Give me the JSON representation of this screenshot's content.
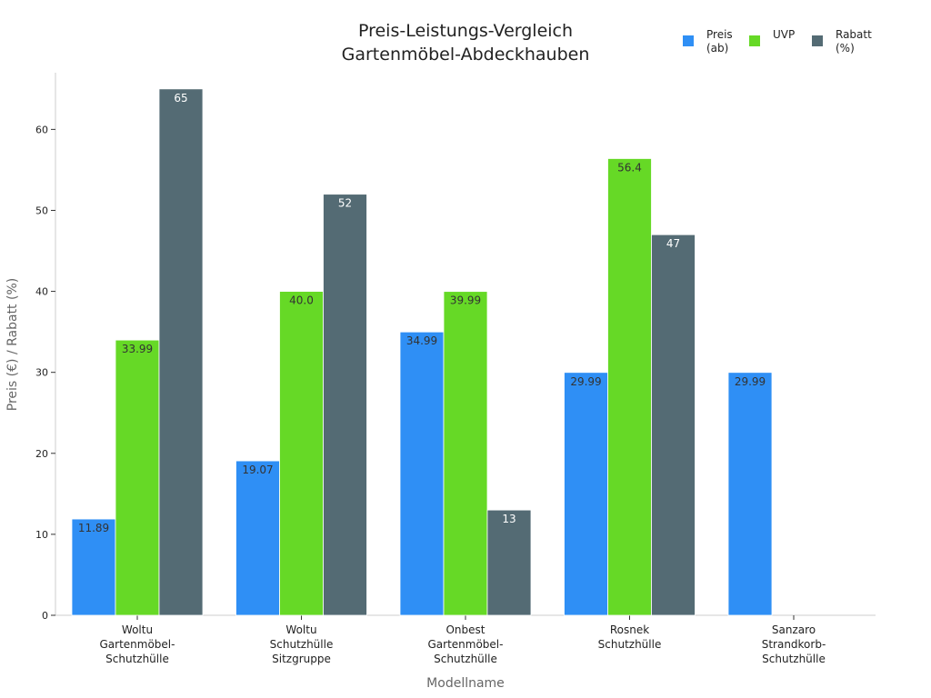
{
  "chart_data": {
    "type": "bar",
    "title": [
      "Preis-Leistungs-Vergleich",
      "Gartenmöbel-Abdeckhauben"
    ],
    "xlabel": "Modellname",
    "ylabel": "Preis (€) / Rabatt (%)",
    "ylim": [
      0,
      67
    ],
    "yticks": [
      0,
      10,
      20,
      30,
      40,
      50,
      60
    ],
    "grid": false,
    "legend_position": "top-right",
    "categories": [
      [
        "Woltu",
        "Gartenmöbel-",
        "Schutzhülle"
      ],
      [
        "Woltu",
        "Schutzhülle",
        "Sitzgruppe"
      ],
      [
        "Onbest",
        "Gartenmöbel-",
        "Schutzhülle"
      ],
      [
        "Rosnek",
        "Schutzhülle"
      ],
      [
        "Sanzaro",
        "Strandkorb-",
        "Schutzhülle"
      ]
    ],
    "series": [
      {
        "name": [
          "Preis",
          "(ab)"
        ],
        "color": "#2f8ff5",
        "label_color": "#333333",
        "values": [
          11.89,
          19.07,
          34.99,
          29.99,
          29.99
        ],
        "labels": [
          "11.89",
          "19.07",
          "34.99",
          "29.99",
          "29.99"
        ]
      },
      {
        "name": [
          "UVP"
        ],
        "color": "#66d926",
        "label_color": "#333333",
        "values": [
          33.99,
          40.0,
          39.99,
          56.4,
          null
        ],
        "labels": [
          "33.99",
          "40.0",
          "39.99",
          "56.4",
          ""
        ]
      },
      {
        "name": [
          "Rabatt",
          "(%)"
        ],
        "color": "#546b74",
        "label_color": "#ffffff",
        "values": [
          65,
          52,
          13,
          47,
          null
        ],
        "labels": [
          "65",
          "52",
          "13",
          "47",
          ""
        ]
      }
    ]
  }
}
